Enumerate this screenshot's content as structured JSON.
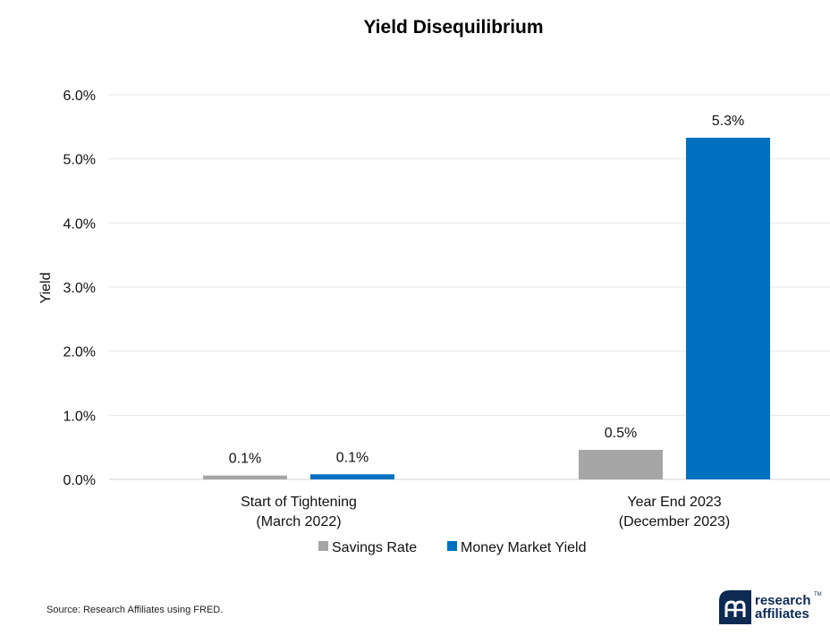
{
  "chart_data": {
    "type": "bar",
    "title": "Yield Disequilibrium",
    "ylabel": "Yield",
    "xlabel": "",
    "ylim": [
      0,
      6
    ],
    "yticks": [
      "0.0%",
      "1.0%",
      "2.0%",
      "3.0%",
      "4.0%",
      "5.0%",
      "6.0%"
    ],
    "grid": true,
    "legend_position": "bottom",
    "categories": [
      [
        "Start of Tightening",
        "(March 2022)"
      ],
      [
        "Year End 2023",
        "(December 2023)"
      ]
    ],
    "series": [
      {
        "name": "Savings Rate",
        "color": "#a6a6a6",
        "values": [
          0.06,
          0.46
        ],
        "labels": [
          "0.1%",
          "0.5%"
        ]
      },
      {
        "name": "Money Market Yield",
        "color": "#0070c0",
        "values": [
          0.08,
          5.33
        ],
        "labels": [
          "0.1%",
          "5.3%"
        ]
      }
    ]
  },
  "footer": {
    "source": "Source: Research Affiliates using FRED.",
    "logo_line1": "research",
    "logo_line2": "affiliates",
    "logo_tm": "TM",
    "logo_color": "#0d2a52"
  }
}
